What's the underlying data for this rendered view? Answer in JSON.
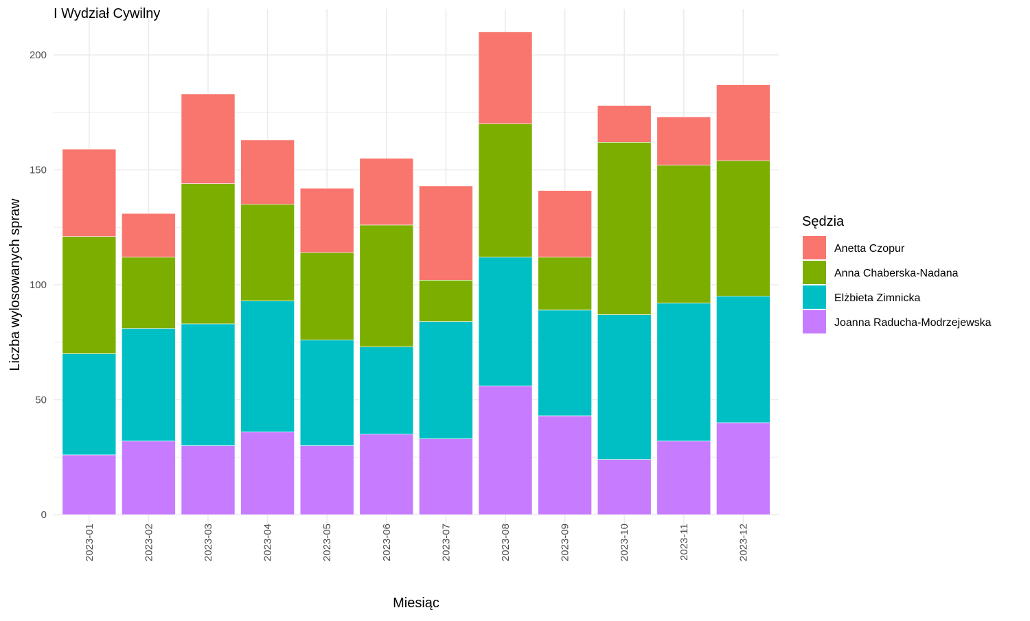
{
  "chart_data": {
    "type": "bar",
    "stacked": true,
    "title": "I Wydział Cywilny",
    "xlabel": "Miesiąc",
    "ylabel": "Liczba wylosowanych spraw",
    "ylim": [
      0,
      220
    ],
    "yticks": [
      0,
      50,
      100,
      150,
      200
    ],
    "grid": true,
    "legend": {
      "title": "Sędzia",
      "position": "right"
    },
    "categories": [
      "2023-01",
      "2023-02",
      "2023-03",
      "2023-04",
      "2023-05",
      "2023-06",
      "2023-07",
      "2023-08",
      "2023-09",
      "2023-10",
      "2023-11",
      "2023-12"
    ],
    "series": [
      {
        "name": "Anetta Czopur",
        "color": "#F8766D",
        "values": [
          38,
          19,
          39,
          28,
          28,
          29,
          41,
          40,
          29,
          16,
          21,
          33
        ]
      },
      {
        "name": "Anna Chaberska-Nadana",
        "color": "#7CAE00",
        "values": [
          51,
          31,
          61,
          42,
          38,
          53,
          18,
          58,
          23,
          75,
          60,
          59
        ]
      },
      {
        "name": "Elżbieta Zimnicka",
        "color": "#00BFC4",
        "values": [
          44,
          49,
          53,
          57,
          46,
          38,
          51,
          56,
          46,
          63,
          60,
          55
        ]
      },
      {
        "name": "Joanna Raducha-Modrzejewska",
        "color": "#C77CFF",
        "values": [
          26,
          32,
          30,
          36,
          30,
          35,
          33,
          56,
          43,
          24,
          32,
          40
        ]
      }
    ]
  }
}
